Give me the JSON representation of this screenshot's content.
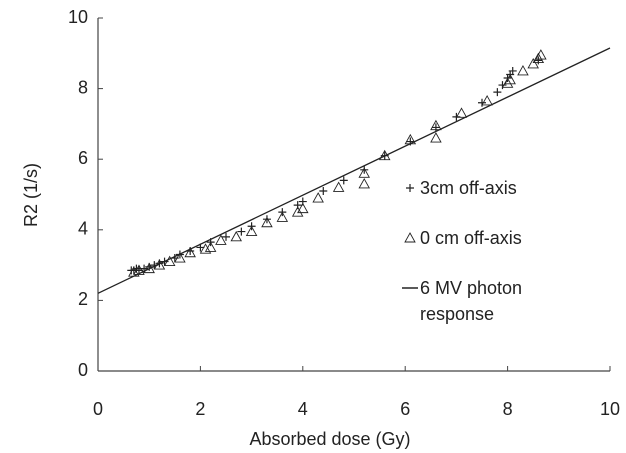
{
  "chart_data": {
    "type": "scatter",
    "x_label": "Absorbed dose (Gy)",
    "y_label": "R2 (1/s)",
    "xlim": [
      0,
      10
    ],
    "ylim": [
      0,
      10
    ],
    "xticks": [
      0,
      2,
      4,
      6,
      8,
      10
    ],
    "yticks": [
      0,
      2,
      4,
      6,
      8,
      10
    ],
    "series": [
      {
        "name": "3cm off-axis",
        "color": "#222222",
        "marker": "plus",
        "x": [
          0.65,
          0.7,
          0.75,
          0.8,
          0.9,
          1.0,
          1.1,
          1.2,
          1.3,
          1.5,
          1.6,
          1.8,
          2.0,
          2.2,
          2.5,
          2.8,
          3.0,
          3.3,
          3.6,
          3.9,
          4.0,
          4.4,
          4.8,
          5.2,
          5.6,
          6.1,
          6.6,
          7.0,
          7.5,
          7.8,
          7.9,
          8.0,
          8.05,
          8.1,
          8.6
        ],
        "values": [
          2.85,
          2.85,
          2.9,
          2.85,
          2.9,
          2.95,
          3.0,
          3.05,
          3.1,
          3.2,
          3.3,
          3.4,
          3.5,
          3.65,
          3.8,
          3.95,
          4.1,
          4.3,
          4.5,
          4.7,
          4.8,
          5.1,
          5.4,
          5.7,
          6.1,
          6.5,
          6.9,
          7.2,
          7.6,
          7.9,
          8.1,
          8.3,
          8.4,
          8.5,
          8.8
        ]
      },
      {
        "name": "0 cm off-axis",
        "color": "#222222",
        "marker": "triangle",
        "x": [
          0.7,
          0.8,
          1.0,
          1.2,
          1.4,
          1.6,
          1.8,
          2.1,
          2.2,
          2.4,
          2.7,
          3.0,
          3.3,
          3.6,
          3.9,
          4.0,
          4.3,
          4.7,
          5.2,
          5.2,
          5.6,
          6.1,
          6.6,
          6.6,
          7.1,
          7.6,
          8.0,
          8.05,
          8.3,
          8.5,
          8.6,
          8.65
        ],
        "values": [
          2.8,
          2.85,
          2.9,
          3.0,
          3.1,
          3.2,
          3.35,
          3.45,
          3.5,
          3.7,
          3.8,
          3.95,
          4.2,
          4.35,
          4.5,
          4.6,
          4.9,
          5.2,
          5.3,
          5.6,
          6.1,
          6.55,
          6.6,
          6.95,
          7.3,
          7.65,
          8.15,
          8.25,
          8.5,
          8.7,
          8.85,
          8.95
        ]
      },
      {
        "name": "6 MV photon response",
        "color": "#222222",
        "marker": "line",
        "x": [
          0,
          10
        ],
        "values": [
          2.2,
          9.15
        ]
      }
    ]
  }
}
